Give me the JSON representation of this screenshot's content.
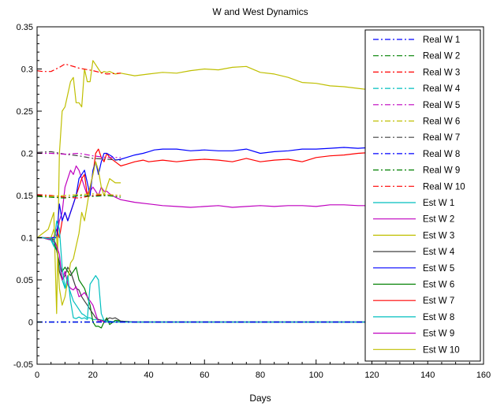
{
  "chart_data": {
    "type": "line",
    "title": "W and West Dynamics",
    "xlabel": "Days",
    "ylabel": "",
    "xlim": [
      0,
      160
    ],
    "ylim": [
      -0.05,
      0.35
    ],
    "xticks": [
      0,
      20,
      40,
      60,
      80,
      100,
      120,
      140,
      160
    ],
    "yticks": [
      -0.05,
      0,
      0.05,
      0.1,
      0.15,
      0.2,
      0.25,
      0.3,
      0.35
    ],
    "xtick_labels": [
      "0",
      "20",
      "40",
      "60",
      "80",
      "100",
      "120",
      "140",
      "160"
    ],
    "ytick_labels": [
      "-0.05",
      "0",
      "0.05",
      "0.1",
      "0.15",
      "0.2",
      "0.25",
      "0.3",
      "0.35"
    ],
    "grid": false,
    "legend_position": "top-right",
    "series": [
      {
        "name": "Real W 1",
        "color": "#0000ff",
        "style": "dashdot",
        "x": [
          0,
          10,
          20,
          30,
          120
        ],
        "y": [
          0,
          0,
          0,
          0,
          0
        ]
      },
      {
        "name": "Real W 2",
        "color": "#008000",
        "style": "dashdot",
        "x": [
          0,
          10,
          20,
          30,
          120
        ],
        "y": [
          0,
          0,
          0,
          0,
          0
        ]
      },
      {
        "name": "Real W 3",
        "color": "#ff0000",
        "style": "dashdot",
        "x": [
          0,
          2,
          5,
          8,
          10,
          12,
          15,
          20,
          25,
          30
        ],
        "y": [
          0.298,
          0.297,
          0.297,
          0.302,
          0.306,
          0.304,
          0.301,
          0.298,
          0.294,
          0.295
        ]
      },
      {
        "name": "Real W 4",
        "color": "#00bfbf",
        "style": "dashdot",
        "x": [
          0,
          10,
          20,
          30,
          120
        ],
        "y": [
          0,
          0,
          0,
          0,
          0
        ]
      },
      {
        "name": "Real W 5",
        "color": "#bf00bf",
        "style": "dashdot",
        "x": [
          0,
          5,
          10,
          15,
          20,
          25,
          30
        ],
        "y": [
          0.2,
          0.2,
          0.199,
          0.2,
          0.197,
          0.195,
          0.195
        ]
      },
      {
        "name": "Real W 6",
        "color": "#bfbf00",
        "style": "dashdot",
        "x": [
          0,
          5,
          10,
          15,
          20,
          25,
          30
        ],
        "y": [
          0.15,
          0.149,
          0.15,
          0.151,
          0.152,
          0.151,
          0.15
        ]
      },
      {
        "name": "Real W 7",
        "color": "#404040",
        "style": "dashdot",
        "x": [
          0,
          5,
          10,
          15,
          20,
          25,
          30
        ],
        "y": [
          0.201,
          0.202,
          0.199,
          0.197,
          0.194,
          0.193,
          0.192
        ]
      },
      {
        "name": "Real W 8",
        "color": "#0000ff",
        "style": "dashdot",
        "x": [
          0,
          10,
          20,
          30,
          120
        ],
        "y": [
          0,
          0,
          0,
          0,
          0
        ]
      },
      {
        "name": "Real W 9",
        "color": "#008000",
        "style": "dashdot",
        "x": [
          0,
          5,
          10,
          15,
          20,
          25,
          30
        ],
        "y": [
          0.149,
          0.148,
          0.147,
          0.15,
          0.149,
          0.15,
          0.148
        ]
      },
      {
        "name": "Real W 10",
        "color": "#ff0000",
        "style": "dashdot",
        "x": [
          0,
          5,
          10,
          15,
          20,
          25,
          30
        ],
        "y": [
          0.151,
          0.15,
          0.148,
          0.147,
          0.15,
          0.151,
          0.15
        ]
      },
      {
        "name": "Est W 1",
        "color": "#00bfbf",
        "style": "solid",
        "x": [
          0,
          2,
          4,
          5,
          6,
          7,
          8,
          9,
          10,
          11,
          12,
          13,
          14,
          15,
          16,
          17,
          18,
          19,
          20,
          21,
          22,
          23,
          24,
          25,
          26,
          28,
          30,
          35,
          40,
          60,
          80,
          100,
          120
        ],
        "y": [
          0.1,
          0.1,
          0.099,
          0.1,
          0.09,
          0.12,
          0.11,
          0.065,
          0.04,
          0.055,
          0.025,
          0.005,
          0.004,
          0.006,
          0.004,
          0.005,
          0.003,
          0.045,
          0.05,
          0.055,
          0.05,
          0.01,
          0.002,
          0.0,
          0.0,
          0.0,
          0.0,
          0.0,
          0.0,
          0.0,
          0.0,
          0.0,
          0.0
        ]
      },
      {
        "name": "Est W 2",
        "color": "#bf00bf",
        "style": "solid",
        "x": [
          0,
          2,
          4,
          5,
          6,
          7,
          8,
          9,
          10,
          11,
          12,
          13,
          14,
          15,
          16,
          17,
          18,
          19,
          20,
          21,
          22,
          23,
          24,
          25,
          28,
          30,
          40,
          120
        ],
        "y": [
          0.1,
          0.1,
          0.098,
          0.098,
          0.095,
          0.09,
          0.08,
          0.05,
          0.06,
          0.045,
          0.04,
          0.038,
          0.042,
          0.03,
          0.032,
          0.035,
          0.03,
          0.025,
          0.02,
          0.01,
          0.0,
          0.002,
          0.0,
          0.0,
          0.0,
          0.0,
          0.0,
          0.0
        ]
      },
      {
        "name": "Est W 3",
        "color": "#bfbf00",
        "style": "solid",
        "x": [
          0,
          2,
          4,
          5,
          6,
          7,
          8,
          9,
          10,
          11,
          12,
          13,
          14,
          15,
          16,
          17,
          18,
          19,
          20,
          21,
          22,
          23,
          24,
          25,
          26,
          28,
          30
        ],
        "y": [
          0.1,
          0.1,
          0.098,
          0.1,
          0.11,
          0.1,
          0.04,
          0.02,
          0.03,
          0.05,
          0.07,
          0.075,
          0.09,
          0.105,
          0.13,
          0.12,
          0.14,
          0.16,
          0.175,
          0.19,
          0.18,
          0.16,
          0.15,
          0.16,
          0.17,
          0.165,
          0.165
        ]
      },
      {
        "name": "Est W 4",
        "color": "#404040",
        "style": "solid",
        "x": [
          0,
          2,
          4,
          5,
          6,
          7,
          8,
          9,
          10,
          11,
          12,
          13,
          14,
          15,
          16,
          17,
          18,
          19,
          20,
          21,
          22,
          23,
          24,
          25,
          26,
          27,
          28,
          30,
          35,
          40,
          120
        ],
        "y": [
          0.1,
          0.1,
          0.098,
          0.099,
          0.098,
          0.09,
          0.06,
          0.05,
          0.055,
          0.065,
          0.06,
          0.05,
          0.04,
          0.038,
          0.03,
          0.025,
          0.02,
          0.015,
          0.01,
          0.005,
          0.003,
          0.002,
          0.001,
          0.003,
          0.005,
          0.004,
          0.005,
          0.001,
          0.0,
          0.0,
          0.0
        ]
      },
      {
        "name": "Est W 5",
        "color": "#0000ff",
        "style": "solid",
        "x": [
          0,
          2,
          4,
          5,
          6,
          7,
          8,
          9,
          10,
          11,
          12,
          13,
          14,
          15,
          16,
          17,
          18,
          19,
          20,
          21,
          22,
          23,
          24,
          25,
          26,
          27,
          28,
          30,
          32,
          35,
          38,
          40,
          42,
          45,
          50,
          55,
          60,
          65,
          70,
          75,
          80,
          85,
          90,
          95,
          100,
          105,
          110,
          115,
          120
        ],
        "y": [
          0.1,
          0.1,
          0.099,
          0.1,
          0.1,
          0.1,
          0.14,
          0.12,
          0.13,
          0.12,
          0.13,
          0.14,
          0.15,
          0.17,
          0.175,
          0.18,
          0.165,
          0.15,
          0.18,
          0.19,
          0.175,
          0.19,
          0.2,
          0.2,
          0.198,
          0.196,
          0.192,
          0.193,
          0.195,
          0.198,
          0.2,
          0.202,
          0.204,
          0.205,
          0.205,
          0.203,
          0.204,
          0.203,
          0.203,
          0.205,
          0.2,
          0.202,
          0.203,
          0.205,
          0.205,
          0.206,
          0.207,
          0.206,
          0.207
        ]
      },
      {
        "name": "Est W 6",
        "color": "#008000",
        "style": "solid",
        "x": [
          0,
          2,
          4,
          5,
          6,
          7,
          8,
          9,
          10,
          11,
          12,
          13,
          14,
          15,
          16,
          17,
          18,
          19,
          20,
          21,
          22,
          23,
          24,
          25,
          26,
          28,
          30,
          35,
          40,
          120
        ],
        "y": [
          0.1,
          0.1,
          0.099,
          0.1,
          0.095,
          0.085,
          0.07,
          0.06,
          0.065,
          0.06,
          0.055,
          0.06,
          0.065,
          0.05,
          0.045,
          0.04,
          0.03,
          0.02,
          0.0,
          -0.005,
          -0.005,
          -0.007,
          0.0,
          0.005,
          -0.003,
          0.002,
          0.001,
          0.0,
          0.0,
          0.0
        ]
      },
      {
        "name": "Est W 7",
        "color": "#ff0000",
        "style": "solid",
        "x": [
          0,
          2,
          4,
          5,
          6,
          7,
          8,
          9,
          10,
          11,
          12,
          13,
          14,
          15,
          16,
          17,
          18,
          19,
          20,
          21,
          22,
          23,
          24,
          25,
          26,
          28,
          30,
          32,
          35,
          38,
          40,
          45,
          50,
          55,
          60,
          65,
          70,
          75,
          80,
          85,
          90,
          95,
          100,
          105,
          110,
          115,
          120
        ],
        "y": [
          0.1,
          0.1,
          0.1,
          0.1,
          0.1,
          0.11,
          0.1,
          0.12,
          0.13,
          0.12,
          0.13,
          0.14,
          0.15,
          0.16,
          0.17,
          0.175,
          0.15,
          0.16,
          0.175,
          0.2,
          0.205,
          0.195,
          0.19,
          0.2,
          0.195,
          0.19,
          0.185,
          0.187,
          0.19,
          0.192,
          0.19,
          0.192,
          0.19,
          0.192,
          0.193,
          0.192,
          0.19,
          0.194,
          0.19,
          0.192,
          0.193,
          0.19,
          0.195,
          0.197,
          0.198,
          0.2,
          0.201
        ]
      },
      {
        "name": "Est W 8",
        "color": "#00bfbf",
        "style": "solid",
        "x": [
          0,
          2,
          4,
          5,
          6,
          7,
          8,
          9,
          10,
          11,
          12,
          13,
          14,
          15,
          16,
          17,
          18,
          19,
          20,
          22,
          24,
          26,
          28,
          30,
          40,
          120
        ],
        "y": [
          0.1,
          0.1,
          0.098,
          0.097,
          0.09,
          0.085,
          0.07,
          0.05,
          0.04,
          0.045,
          0.035,
          0.025,
          0.02,
          0.015,
          0.01,
          0.008,
          0.005,
          0.005,
          0.003,
          0.003,
          0.002,
          0.001,
          0.0,
          0.0,
          0.0,
          0.0
        ]
      },
      {
        "name": "Est W 9",
        "color": "#bf00bf",
        "style": "solid",
        "x": [
          0,
          2,
          4,
          5,
          6,
          7,
          8,
          9,
          10,
          11,
          12,
          13,
          14,
          15,
          16,
          17,
          18,
          19,
          20,
          21,
          22,
          23,
          24,
          25,
          26,
          28,
          30,
          35,
          40,
          45,
          50,
          55,
          60,
          65,
          70,
          75,
          80,
          85,
          90,
          95,
          100,
          105,
          110,
          115,
          120
        ],
        "y": [
          0.1,
          0.1,
          0.099,
          0.1,
          0.1,
          0.1,
          0.12,
          0.13,
          0.16,
          0.17,
          0.18,
          0.175,
          0.185,
          0.18,
          0.17,
          0.16,
          0.15,
          0.155,
          0.16,
          0.155,
          0.15,
          0.16,
          0.155,
          0.155,
          0.152,
          0.148,
          0.145,
          0.142,
          0.14,
          0.138,
          0.137,
          0.136,
          0.137,
          0.138,
          0.136,
          0.137,
          0.138,
          0.137,
          0.138,
          0.138,
          0.137,
          0.139,
          0.139,
          0.138,
          0.138
        ]
      },
      {
        "name": "Est W 10",
        "color": "#bfbf00",
        "style": "solid",
        "x": [
          0,
          2,
          4,
          5,
          6,
          7,
          8,
          9,
          10,
          11,
          12,
          13,
          14,
          15,
          16,
          17,
          18,
          19,
          20,
          21,
          22,
          23,
          24,
          25,
          26,
          28,
          30,
          35,
          40,
          45,
          50,
          55,
          60,
          65,
          70,
          75,
          80,
          85,
          90,
          95,
          100,
          105,
          110,
          115,
          120
        ],
        "y": [
          0.1,
          0.105,
          0.11,
          0.12,
          0.13,
          0.01,
          0.2,
          0.25,
          0.255,
          0.27,
          0.285,
          0.29,
          0.26,
          0.26,
          0.255,
          0.3,
          0.285,
          0.285,
          0.31,
          0.305,
          0.3,
          0.295,
          0.297,
          0.296,
          0.297,
          0.294,
          0.295,
          0.292,
          0.294,
          0.296,
          0.295,
          0.298,
          0.3,
          0.299,
          0.302,
          0.303,
          0.296,
          0.294,
          0.29,
          0.284,
          0.283,
          0.28,
          0.279,
          0.277,
          0.275
        ]
      }
    ]
  }
}
